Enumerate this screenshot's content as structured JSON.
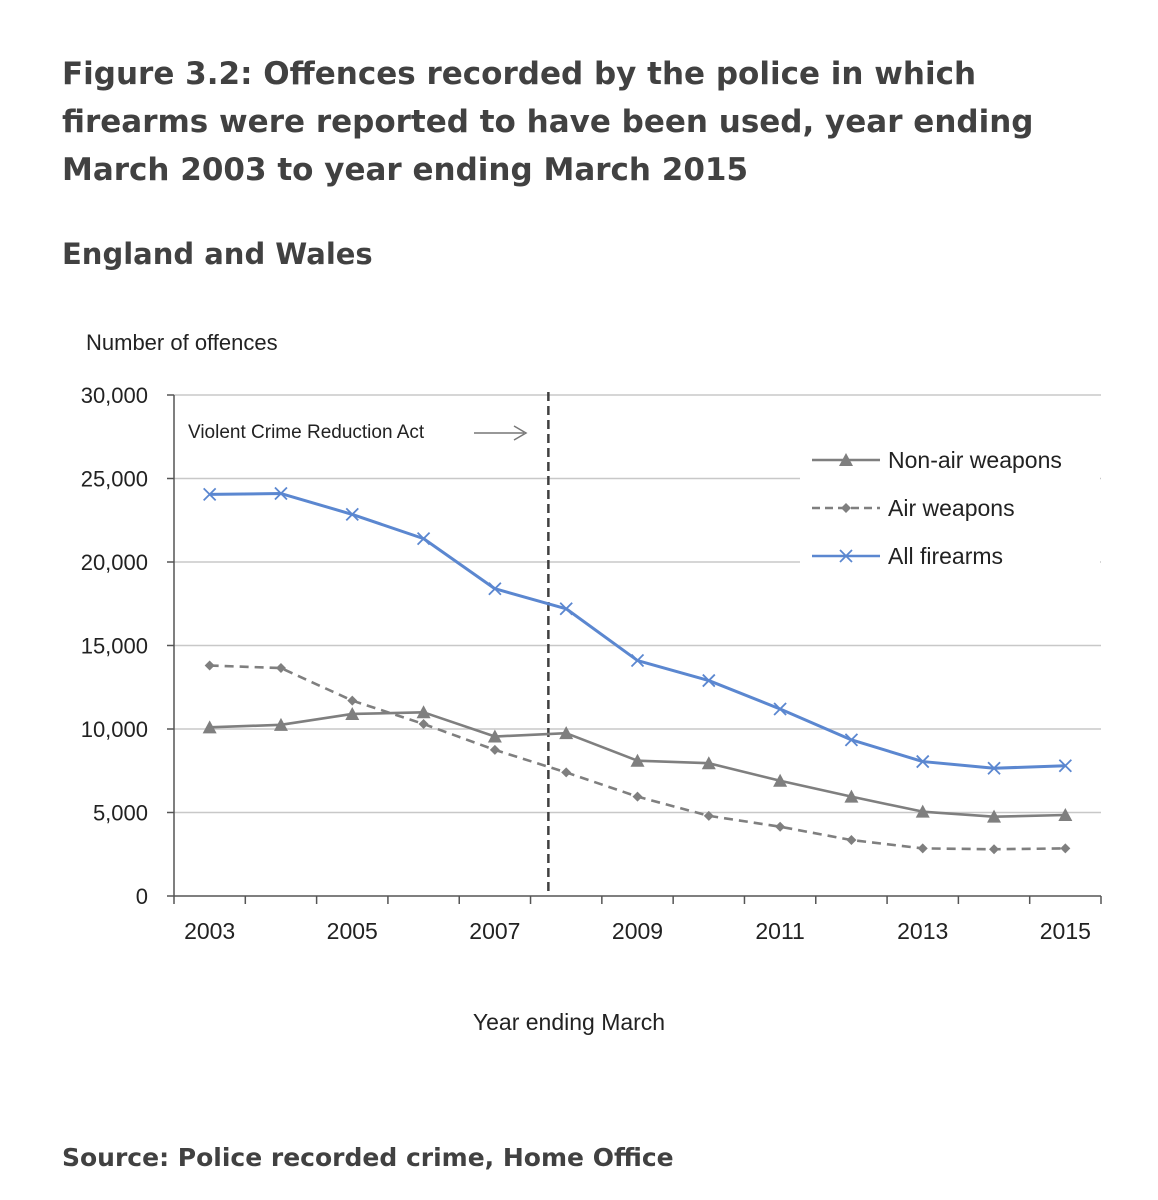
{
  "figure": {
    "title": "Figure 3.2: Offences recorded by the police in which firearms were reported to have been used, year ending March 2003 to year ending March 2015",
    "subtitle": "England and Wales",
    "source": "Source: Police recorded crime, Home Office"
  },
  "chart_data": {
    "type": "line",
    "ylabel": "Number of offences",
    "xlabel": "Year ending March",
    "ylim": [
      0,
      30000
    ],
    "yticks": [
      0,
      5000,
      10000,
      15000,
      20000,
      25000,
      30000
    ],
    "ytick_labels": [
      "0",
      "5,000",
      "10,000",
      "15,000",
      "20,000",
      "25,000",
      "30,000"
    ],
    "x": [
      2003,
      2004,
      2005,
      2006,
      2007,
      2008,
      2009,
      2010,
      2011,
      2012,
      2013,
      2014,
      2015
    ],
    "xtick_labels": [
      "2003",
      "2005",
      "2007",
      "2009",
      "2011",
      "2013",
      "2015"
    ],
    "xtick_values": [
      2003,
      2005,
      2007,
      2009,
      2011,
      2013,
      2015
    ],
    "grid": true,
    "legend_position": "top-right",
    "series": [
      {
        "name": "Non-air weapons",
        "style": "solid",
        "marker": "triangle",
        "color": "#7f7f7f",
        "values": [
          10100,
          10250,
          10900,
          11000,
          9550,
          9750,
          8100,
          7950,
          6900,
          5950,
          5050,
          4750,
          4850
        ]
      },
      {
        "name": "Air weapons",
        "style": "dashed",
        "marker": "diamond",
        "color": "#7f7f7f",
        "values": [
          13800,
          13650,
          11700,
          10300,
          8750,
          7400,
          5950,
          4800,
          4150,
          3350,
          2850,
          2800,
          2850
        ]
      },
      {
        "name": "All firearms",
        "style": "solid",
        "marker": "x",
        "color": "#5b87d0",
        "values": [
          24050,
          24100,
          22850,
          21400,
          18400,
          17200,
          14100,
          12900,
          11200,
          9350,
          8050,
          7650,
          7800
        ]
      }
    ],
    "annotation": {
      "text": "Violent Crime Reduction Act",
      "x": 2007.75
    }
  }
}
